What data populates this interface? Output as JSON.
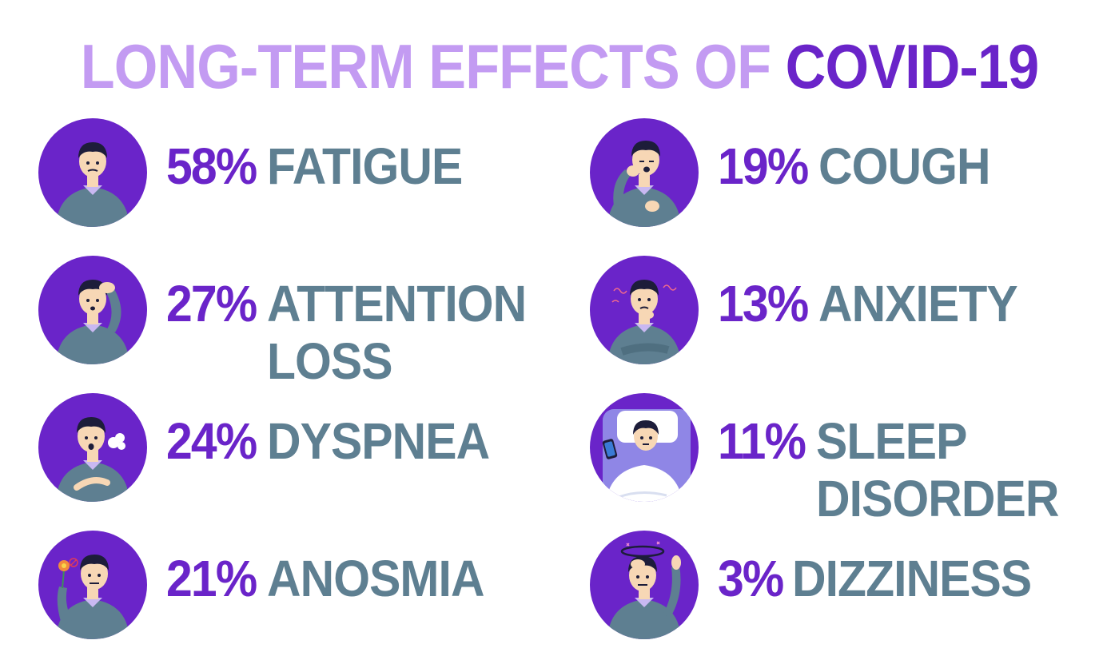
{
  "title": {
    "part1": "LONG-TERM EFFECTS OF",
    "part2": "COVID-19"
  },
  "colors": {
    "title_light": "#c39bf2",
    "title_dark": "#6a24c9",
    "percent": "#6a24c9",
    "label": "#5e7f91",
    "circle": "#6a24c9"
  },
  "left_items": [
    {
      "percent": "58%",
      "label_lines": [
        "FATIGUE"
      ],
      "icon": "person-fatigue-icon"
    },
    {
      "percent": "27%",
      "label_lines": [
        "ATTENTION",
        "LOSS"
      ],
      "icon": "person-headache-icon"
    },
    {
      "percent": "24%",
      "label_lines": [
        "DYSPNEA"
      ],
      "icon": "person-short-breath-icon"
    },
    {
      "percent": "21%",
      "label_lines": [
        "ANOSMIA"
      ],
      "icon": "person-smelling-flower-icon"
    }
  ],
  "right_items": [
    {
      "percent": "19%",
      "label_lines": [
        "COUGH"
      ],
      "icon": "person-coughing-icon"
    },
    {
      "percent": "13%",
      "label_lines": [
        "ANXIETY"
      ],
      "icon": "person-anxious-icon"
    },
    {
      "percent": "11%",
      "label_lines": [
        "SLEEP",
        "DISORDER"
      ],
      "icon": "person-in-bed-icon"
    },
    {
      "percent": "3%",
      "label_lines": [
        "DIZZINESS"
      ],
      "icon": "person-dizzy-icon"
    }
  ]
}
